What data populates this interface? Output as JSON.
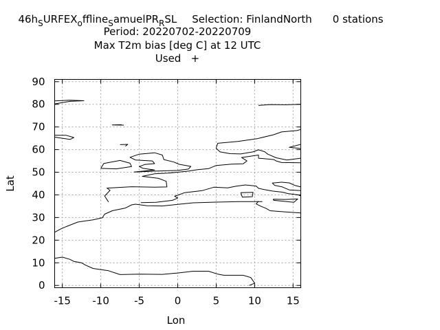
{
  "title": {
    "line1": {
      "exp_a": "46h",
      "sub_a": "S",
      "exp_b": "URFEX",
      "sub_b": "o",
      "exp_c": "ffline",
      "sub_c": "S",
      "exp_d": "amuelPR",
      "sub_d": "R",
      "exp_e": "SL",
      "selection": "Selection: FinlandNorth",
      "stations": "0 stations"
    },
    "line2": "Period: 20220702-20220709",
    "line3": "Max T2m bias [deg C] at  12 UTC",
    "line4": "Used   +"
  },
  "chart_data": {
    "type": "scatter",
    "title": "Max T2m bias [deg C] at  12 UTC",
    "xlabel": "Lon",
    "ylabel": "Lat",
    "xlim": [
      -16,
      16
    ],
    "ylim": [
      -1,
      91
    ],
    "xticks": [
      -15,
      -10,
      -5,
      0,
      5,
      10,
      15
    ],
    "yticks": [
      0,
      10,
      20,
      30,
      40,
      50,
      60,
      70,
      80,
      90
    ],
    "grid": true,
    "legend": "top",
    "series": [
      {
        "name": "Used",
        "marker": "+",
        "points": []
      }
    ],
    "coastlines": [
      [
        [
          -16,
          81.5
        ],
        [
          -14,
          81.8
        ],
        [
          -12.2,
          81.6
        ],
        [
          -14,
          81.3
        ],
        [
          -16,
          80.2
        ]
      ],
      [
        [
          -16,
          23.5
        ],
        [
          -15.2,
          25
        ],
        [
          -14.5,
          26
        ],
        [
          -13,
          28
        ],
        [
          -11,
          29
        ],
        [
          -9.8,
          29.9
        ],
        [
          -9.5,
          31.5
        ],
        [
          -8.5,
          33
        ],
        [
          -6.8,
          34.2
        ],
        [
          -6,
          35.6
        ],
        [
          -5.5,
          35.9
        ],
        [
          -4,
          35.2
        ],
        [
          -2,
          35.1
        ],
        [
          0,
          35.8
        ],
        [
          2,
          36.5
        ],
        [
          5,
          36.8
        ],
        [
          8,
          37
        ],
        [
          10,
          37
        ],
        [
          11,
          37
        ]
      ],
      [
        [
          10.5,
          37.2
        ],
        [
          10.2,
          36
        ],
        [
          10.8,
          35
        ],
        [
          11.5,
          34
        ],
        [
          12,
          33
        ],
        [
          14,
          32.5
        ],
        [
          16,
          32
        ]
      ],
      [
        [
          -16,
          12
        ],
        [
          -15,
          12.5
        ],
        [
          -14,
          11.5
        ],
        [
          -13.5,
          10.6
        ],
        [
          -12.5,
          10
        ],
        [
          -12,
          9
        ],
        [
          -11,
          7.5
        ],
        [
          -9,
          6.5
        ],
        [
          -7.5,
          4.8
        ],
        [
          -5,
          5
        ],
        [
          -2,
          4.9
        ],
        [
          0,
          5.5
        ],
        [
          2,
          6.3
        ],
        [
          4,
          6.3
        ],
        [
          5.2,
          5
        ],
        [
          6,
          4.5
        ],
        [
          8.5,
          4.5
        ],
        [
          9.5,
          3.5
        ],
        [
          10,
          1
        ],
        [
          9.3,
          0
        ]
      ],
      [
        [
          -9,
          36.9
        ],
        [
          -9.5,
          39.5
        ],
        [
          -8.8,
          42
        ],
        [
          -9.2,
          43
        ],
        [
          -6,
          43.6
        ],
        [
          -3,
          43.4
        ],
        [
          -1.4,
          43.5
        ],
        [
          -1.5,
          46
        ],
        [
          -2.5,
          47.3
        ],
        [
          -4.6,
          48.2
        ],
        [
          -3,
          49.3
        ],
        [
          -1.2,
          49.6
        ],
        [
          1.4,
          50.5
        ],
        [
          2.5,
          51.1
        ],
        [
          4,
          51.6
        ],
        [
          5,
          53
        ],
        [
          7,
          53.6
        ],
        [
          8.5,
          53.7
        ],
        [
          9,
          55
        ],
        [
          8.3,
          56.5
        ],
        [
          10.5,
          57.6
        ],
        [
          10.5,
          56.2
        ],
        [
          12.5,
          55.6
        ],
        [
          12.8,
          55
        ],
        [
          13.5,
          54.3
        ],
        [
          16,
          54.2
        ]
      ],
      [
        [
          -5.7,
          50.1
        ],
        [
          -3,
          51
        ],
        [
          -4.5,
          51.7
        ],
        [
          -5,
          52.5
        ],
        [
          -4.3,
          53.4
        ],
        [
          -3,
          53.8
        ],
        [
          -3.3,
          55
        ],
        [
          -5.5,
          55.4
        ],
        [
          -6.2,
          56.6
        ],
        [
          -5,
          58
        ],
        [
          -3,
          58.6
        ],
        [
          -2,
          57.6
        ],
        [
          -1.8,
          55.6
        ],
        [
          -0.5,
          54.5
        ],
        [
          0.2,
          53.5
        ],
        [
          1.7,
          52.6
        ],
        [
          1.4,
          51.4
        ],
        [
          0,
          50.8
        ],
        [
          -3,
          50.5
        ],
        [
          -5.7,
          50.1
        ]
      ],
      [
        [
          -10,
          51.7
        ],
        [
          -8,
          51.5
        ],
        [
          -6,
          52.5
        ],
        [
          -6.2,
          54
        ],
        [
          -7.5,
          55.2
        ],
        [
          -9.6,
          53.9
        ],
        [
          -10,
          51.7
        ]
      ],
      [
        [
          5,
          60.6
        ],
        [
          5.2,
          62.8
        ],
        [
          7.8,
          63.6
        ],
        [
          10.3,
          64.8
        ],
        [
          12.5,
          66.6
        ],
        [
          13.5,
          67.8
        ],
        [
          15.5,
          68.4
        ],
        [
          16,
          68.9
        ]
      ],
      [
        [
          5,
          60.6
        ],
        [
          5.5,
          59
        ],
        [
          6.8,
          58.2
        ],
        [
          8.2,
          58.1
        ],
        [
          9.8,
          59
        ],
        [
          10.5,
          59.9
        ],
        [
          11.3,
          59.1
        ],
        [
          11.7,
          58
        ],
        [
          12.8,
          56.4
        ],
        [
          14.2,
          55.4
        ],
        [
          16,
          56.2
        ]
      ],
      [
        [
          16,
          60.5
        ],
        [
          14.5,
          61
        ],
        [
          16,
          62.3
        ]
      ],
      [
        [
          -16,
          65.5
        ],
        [
          -14,
          64.5
        ],
        [
          -13.5,
          65.3
        ],
        [
          -14.5,
          66.3
        ],
        [
          -16,
          66.3
        ]
      ],
      [
        [
          10.5,
          79.5
        ],
        [
          12,
          79.9
        ],
        [
          14,
          79.8
        ],
        [
          16,
          80
        ]
      ],
      [
        [
          -4.8,
          36.6
        ],
        [
          -2.8,
          36.7
        ],
        [
          -0.7,
          37.6
        ],
        [
          0,
          38.6
        ],
        [
          -0.4,
          39.4
        ],
        [
          0.2,
          40.1
        ],
        [
          0.9,
          41
        ],
        [
          3.2,
          41.9
        ],
        [
          4.7,
          43.4
        ],
        [
          6.5,
          43.1
        ],
        [
          7.5,
          43.8
        ],
        [
          8.8,
          44.4
        ],
        [
          10.2,
          43.9
        ],
        [
          10.5,
          42.9
        ],
        [
          11.2,
          42.4
        ],
        [
          12.3,
          41.7
        ],
        [
          13.6,
          41.2
        ],
        [
          14.3,
          40.6
        ],
        [
          15.7,
          40
        ],
        [
          16,
          39.5
        ]
      ],
      [
        [
          8.2,
          41
        ],
        [
          9.8,
          41.1
        ],
        [
          9.7,
          39.2
        ],
        [
          8.4,
          39
        ],
        [
          8.2,
          41
        ]
      ],
      [
        [
          12.4,
          38.1
        ],
        [
          14,
          38
        ],
        [
          15.6,
          38.2
        ],
        [
          15.1,
          36.7
        ],
        [
          12.5,
          37.6
        ],
        [
          12.4,
          38.1
        ]
      ],
      [
        [
          13.5,
          45.6
        ],
        [
          12.8,
          45.4
        ],
        [
          12.3,
          45.2
        ],
        [
          12.6,
          44.2
        ],
        [
          13.6,
          43.5
        ],
        [
          14.5,
          42.2
        ],
        [
          16,
          41.9
        ]
      ],
      [
        [
          13.5,
          45.6
        ],
        [
          14.5,
          45.3
        ],
        [
          15.2,
          44.2
        ],
        [
          16,
          43.5
        ]
      ],
      [
        [
          -7.3,
          71.0
        ],
        [
          -8.5,
          70.9
        ],
        [
          -7.0,
          70.8
        ]
      ],
      [
        [
          -7.5,
          62.2
        ],
        [
          -6.5,
          62.3
        ],
        [
          -6.8,
          61.5
        ]
      ]
    ]
  }
}
